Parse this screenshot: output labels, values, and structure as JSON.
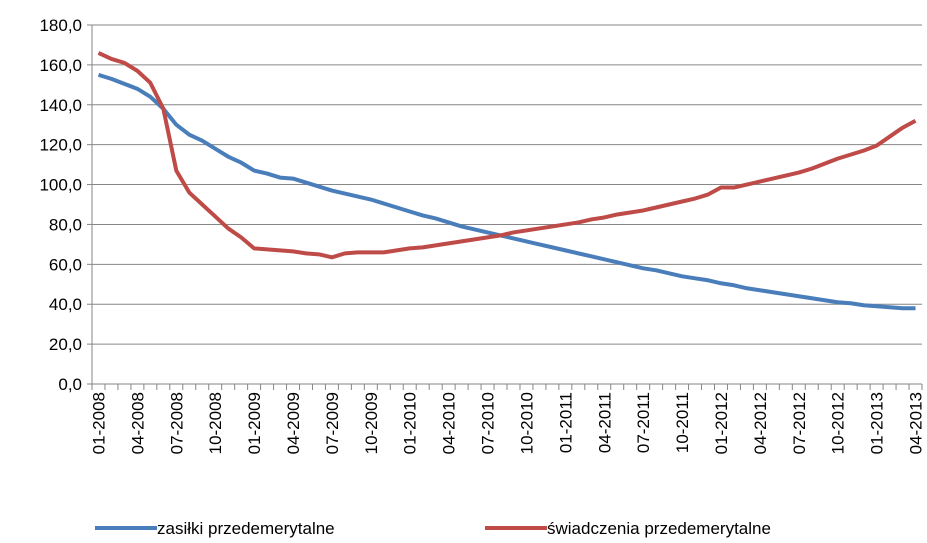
{
  "chart_data": {
    "type": "line",
    "categories": [
      "01-2008",
      null,
      null,
      "04-2008",
      null,
      null,
      "07-2008",
      null,
      null,
      "10-2008",
      null,
      null,
      "01-2009",
      null,
      null,
      "04-2009",
      null,
      null,
      "07-2009",
      null,
      null,
      "10-2009",
      null,
      null,
      "01-2010",
      null,
      null,
      "04-2010",
      null,
      null,
      "07-2010",
      null,
      null,
      "10-2010",
      null,
      null,
      "01-2011",
      null,
      null,
      "04-2011",
      null,
      null,
      "07-2011",
      null,
      null,
      "10-2011",
      null,
      null,
      "01-2012",
      null,
      null,
      "04-2012",
      null,
      null,
      "07-2012",
      null,
      null,
      "10-2012",
      null,
      null,
      "01-2013",
      null,
      null,
      "04-2013"
    ],
    "series": [
      {
        "name": "zasiłki przedemerytalne",
        "color": "#4a7ebb",
        "values": [
          155,
          153,
          150.5,
          148,
          144,
          138,
          130,
          125,
          122,
          118,
          114,
          111,
          107,
          105.5,
          103.5,
          103,
          101,
          99,
          97,
          95.5,
          94,
          92.5,
          90.5,
          88.5,
          86.5,
          84.5,
          83,
          81,
          79,
          77.5,
          76,
          74.5,
          73,
          71.5,
          70,
          68.5,
          67,
          65.5,
          64,
          62.5,
          61,
          59.5,
          58,
          57,
          55.5,
          54,
          53,
          52,
          50.5,
          49.5,
          48,
          47,
          46,
          45,
          44,
          43,
          42,
          41,
          40.5,
          39.5,
          39,
          38.5,
          38,
          38
        ]
      },
      {
        "name": "świadczenia przedemerytalne",
        "color": "#be4b48",
        "values": [
          166,
          163,
          161,
          157,
          151,
          138,
          107,
          96,
          90,
          84,
          78,
          73.5,
          68,
          67.5,
          67,
          66.5,
          65.5,
          65,
          63.5,
          65.5,
          66,
          66,
          66,
          67,
          68,
          68.5,
          69.5,
          70.5,
          71.5,
          72.5,
          73.5,
          74.5,
          76,
          77,
          78,
          79,
          80,
          81,
          82.5,
          83.5,
          85,
          86,
          87,
          88.5,
          90,
          91.5,
          93,
          95,
          98.5,
          98.5,
          100,
          101.5,
          103,
          104.5,
          106,
          108,
          110.5,
          113,
          115,
          117,
          119.5,
          124,
          128.5,
          132
        ]
      }
    ],
    "ylim": [
      0,
      180
    ],
    "yticks": [
      {
        "value": 0,
        "label": "0,0"
      },
      {
        "value": 20,
        "label": "20,0"
      },
      {
        "value": 40,
        "label": "40,0"
      },
      {
        "value": 60,
        "label": "60,0"
      },
      {
        "value": 80,
        "label": "80,0"
      },
      {
        "value": 100,
        "label": "100,0"
      },
      {
        "value": 120,
        "label": "120,0"
      },
      {
        "value": 140,
        "label": "140,0"
      },
      {
        "value": 160,
        "label": "160,0"
      },
      {
        "value": 180,
        "label": "180,0"
      }
    ],
    "grid": true
  }
}
